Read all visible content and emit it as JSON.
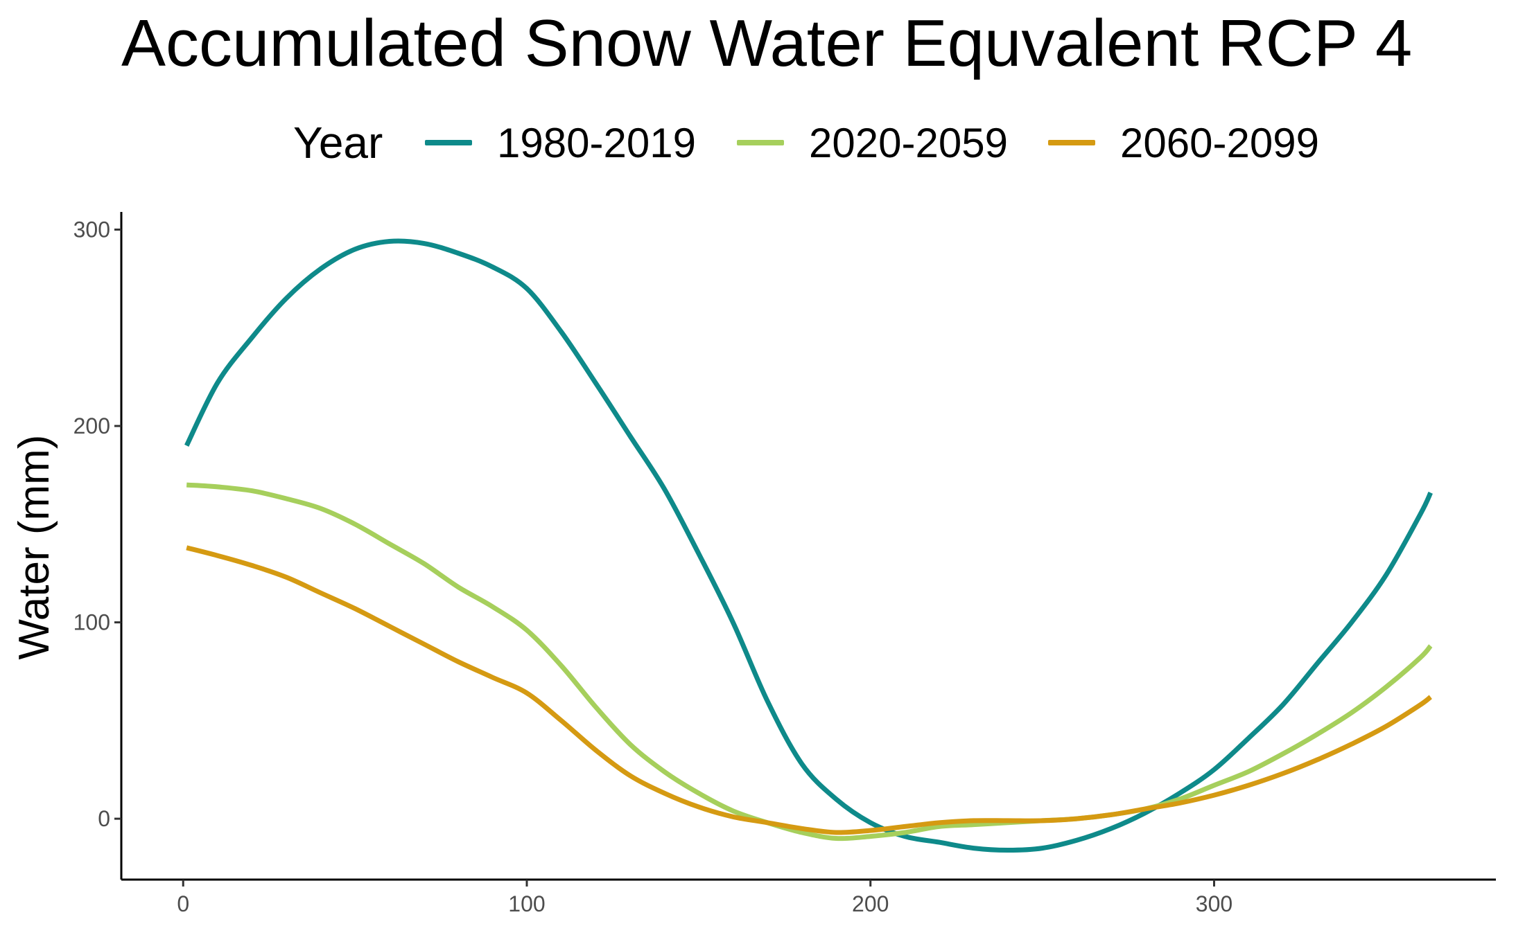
{
  "chart_data": {
    "type": "line",
    "title": "Accumulated Snow Water Equvalent RCP 4",
    "xlabel": "",
    "ylabel": "Water (mm)",
    "xlim": [
      -18,
      382
    ],
    "ylim": [
      -31,
      309
    ],
    "x_ticks": [
      0,
      100,
      200,
      300
    ],
    "y_ticks": [
      0,
      100,
      200,
      300
    ],
    "grid": false,
    "legend": {
      "title": "Year",
      "position": "top",
      "entries": [
        "1980-2019",
        "2020-2059",
        "2060-2099"
      ]
    },
    "series": [
      {
        "name": "1980-2019",
        "color": "#0e8a8a",
        "x": [
          1,
          10,
          20,
          30,
          40,
          50,
          60,
          70,
          80,
          90,
          100,
          110,
          120,
          130,
          140,
          150,
          160,
          170,
          180,
          190,
          200,
          210,
          220,
          230,
          240,
          250,
          260,
          270,
          280,
          290,
          300,
          310,
          320,
          330,
          340,
          350,
          360,
          363
        ],
        "y": [
          190,
          222,
          245,
          265,
          280,
          290,
          294,
          293,
          288,
          281,
          270,
          248,
          222,
          195,
          168,
          135,
          100,
          60,
          28,
          10,
          -2,
          -9,
          -12,
          -15,
          -16,
          -15,
          -11,
          -5,
          3,
          13,
          25,
          41,
          58,
          79,
          100,
          124,
          155,
          166
        ]
      },
      {
        "name": "2020-2059",
        "color": "#a6cf5c",
        "x": [
          1,
          10,
          20,
          30,
          40,
          50,
          60,
          70,
          80,
          90,
          100,
          110,
          120,
          130,
          140,
          150,
          160,
          170,
          180,
          190,
          200,
          210,
          220,
          230,
          240,
          250,
          260,
          270,
          280,
          290,
          300,
          310,
          320,
          330,
          340,
          350,
          360,
          363
        ],
        "y": [
          170,
          169,
          167,
          163,
          158,
          150,
          140,
          130,
          118,
          108,
          96,
          78,
          57,
          38,
          24,
          13,
          4,
          -2,
          -7,
          -10,
          -9,
          -7,
          -4,
          -3,
          -2,
          -1,
          0,
          2,
          5,
          10,
          17,
          24,
          33,
          43,
          54,
          67,
          82,
          88
        ]
      },
      {
        "name": "2060-2099",
        "color": "#d59a12",
        "x": [
          1,
          10,
          20,
          30,
          40,
          50,
          60,
          70,
          80,
          90,
          100,
          110,
          120,
          130,
          140,
          150,
          160,
          170,
          180,
          190,
          200,
          210,
          220,
          230,
          240,
          250,
          260,
          270,
          280,
          290,
          300,
          310,
          320,
          330,
          340,
          350,
          360,
          363
        ],
        "y": [
          138,
          134,
          129,
          123,
          115,
          107,
          98,
          89,
          80,
          72,
          64,
          50,
          35,
          22,
          13,
          6,
          1,
          -2,
          -5,
          -7,
          -6,
          -4,
          -2,
          -1,
          -1,
          -1,
          0,
          2,
          5,
          8,
          12,
          17,
          23,
          30,
          38,
          47,
          58,
          62
        ]
      }
    ]
  }
}
